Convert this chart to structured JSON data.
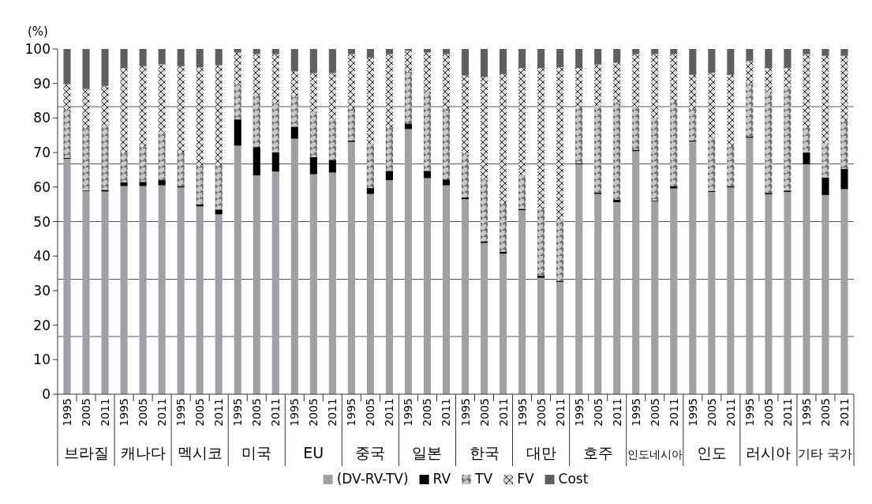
{
  "chart_data": {
    "type": "bar",
    "stacked": true,
    "ylabel": "(%)",
    "categories": [
      "1995",
      "2005",
      "2011",
      "1995",
      "2005",
      "2011",
      "1995",
      "2005",
      "2011",
      "1995",
      "2005",
      "2011",
      "1995",
      "2005",
      "2011",
      "1995",
      "2005",
      "2011",
      "1995",
      "2005",
      "2011",
      "1995",
      "2005",
      "2011",
      "1995",
      "2005",
      "2011",
      "1995",
      "2005",
      "2011",
      "1995",
      "2005",
      "2011",
      "1995",
      "2005",
      "2011",
      "1995",
      "2005",
      "2011",
      "1995",
      "2005",
      "2011"
    ],
    "annotations": [
      "브라질",
      "캐나다",
      "멕시코",
      "미국",
      "EU",
      "중국",
      "일본",
      "한국",
      "대만",
      "호주",
      "인도네시아",
      "인도",
      "러시아",
      "기타 국가"
    ],
    "series": [
      {
        "name": "(DV-RV-TV)",
        "color": "#a0a1a5",
        "values": [
          68.2,
          58.8,
          58.7,
          60.3,
          60.3,
          60.5,
          59.9,
          54.4,
          52.1,
          72.0,
          63.4,
          64.5,
          74.0,
          63.7,
          64.2,
          73.1,
          58.0,
          62.0,
          76.8,
          62.6,
          60.5,
          56.5,
          43.8,
          40.7,
          53.3,
          33.7,
          32.5,
          66.6,
          58.0,
          55.6,
          70.4,
          55.9,
          59.6,
          73.2,
          58.6,
          59.9,
          74.3,
          57.9,
          58.6,
          66.6,
          57.7,
          59.4
        ]
      },
      {
        "name": "RV",
        "color": "#000000",
        "values": [
          0.3,
          0.2,
          0.5,
          1.1,
          1.2,
          1.5,
          0.3,
          0.6,
          1.4,
          7.6,
          8.2,
          5.6,
          3.5,
          5.0,
          3.7,
          0.4,
          1.7,
          2.7,
          1.6,
          2.1,
          1.7,
          0.5,
          0.5,
          0.6,
          0.4,
          0.6,
          0.3,
          0.3,
          0.4,
          0.7,
          0.4,
          0.2,
          0.7,
          0.3,
          0.3,
          0.3,
          0.3,
          0.4,
          0.4,
          3.4,
          5.1,
          5.9
        ]
      },
      {
        "name": "TV",
        "color": "#c8c8c8",
        "values": [
          13.9,
          18.1,
          18.6,
          8.4,
          10.2,
          13.9,
          9.8,
          11.2,
          12.9,
          10.2,
          15.1,
          14.2,
          8.7,
          13.3,
          11.8,
          9.3,
          12.8,
          12.4,
          15.0,
          23.0,
          20.6,
          12.5,
          17.9,
          14.1,
          9.7,
          19.4,
          17.6,
          16.0,
          25.1,
          27.9,
          12.4,
          24.0,
          24.4,
          9.1,
          15.3,
          11.7,
          15.2,
          29.4,
          29.7,
          7.3,
          9.9,
          13.7
        ]
      },
      {
        "name": "FV",
        "color": "#dcdcdc",
        "values": [
          7.4,
          11.3,
          11.5,
          24.7,
          23.3,
          19.7,
          25.0,
          28.5,
          28.9,
          9.2,
          11.8,
          14.2,
          7.3,
          11.0,
          13.3,
          15.7,
          25.0,
          21.4,
          6.1,
          11.3,
          15.7,
          22.8,
          29.7,
          37.3,
          31.1,
          40.8,
          44.3,
          11.6,
          12.0,
          11.8,
          15.3,
          18.4,
          13.8,
          9.9,
          18.9,
          20.6,
          6.7,
          6.8,
          5.8,
          21.2,
          25.3,
          19.0
        ]
      },
      {
        "name": "Cost",
        "color": "#5f5f5f",
        "values": [
          10.2,
          11.6,
          10.7,
          5.5,
          5.0,
          4.4,
          5.0,
          5.3,
          4.7,
          1.0,
          1.5,
          1.5,
          6.5,
          7.0,
          7.0,
          1.5,
          2.5,
          1.5,
          0.5,
          1.0,
          1.5,
          7.7,
          8.1,
          7.3,
          5.5,
          5.5,
          5.3,
          5.5,
          4.5,
          4.0,
          1.5,
          1.5,
          1.5,
          7.5,
          6.9,
          7.5,
          3.5,
          5.5,
          5.5,
          1.5,
          2.0,
          2.0
        ]
      }
    ],
    "ylim": [
      0,
      100
    ],
    "yticks": [
      0,
      10,
      20,
      30,
      40,
      50,
      60,
      70,
      80,
      90,
      100
    ],
    "ref_lines": [
      {
        "axis": "y",
        "value": 16.7,
        "color": "#555555"
      },
      {
        "axis": "y",
        "value": 33.3,
        "color": "#555555"
      },
      {
        "axis": "y",
        "value": 50,
        "color": "#555555"
      },
      {
        "axis": "y",
        "value": 66.7,
        "color": "#555555"
      },
      {
        "axis": "y",
        "value": 83.3,
        "color": "#555555"
      }
    ],
    "legend": "bottom"
  }
}
